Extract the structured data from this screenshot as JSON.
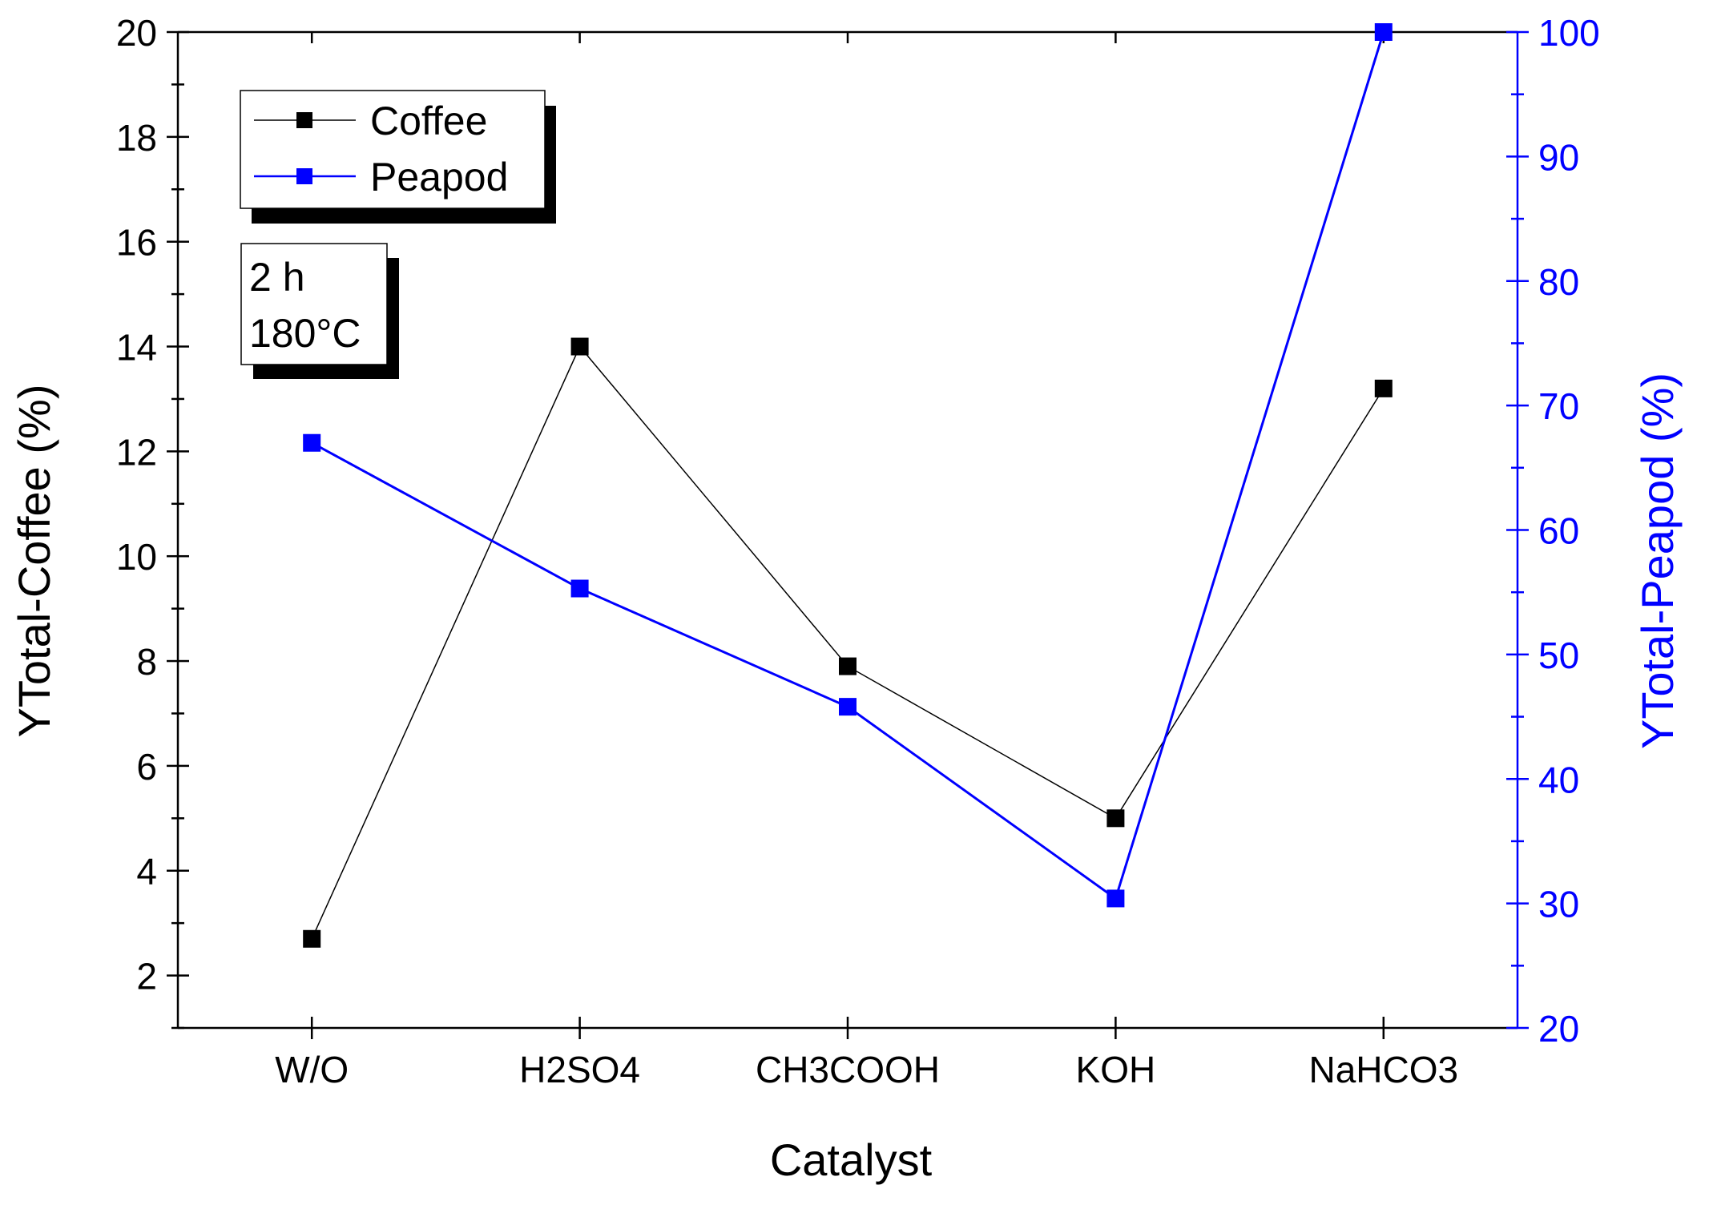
{
  "chart_data": {
    "type": "line",
    "xlabel": "Catalyst",
    "ylabel_left": "YTotal-Coffee (%)",
    "ylabel_right": "YTotal-Peapod (%)",
    "categories": [
      "W/O",
      "H2SO4",
      "CH3COOH",
      "KOH",
      "NaHCO3"
    ],
    "ylim_left": [
      1,
      20
    ],
    "ylim_right": [
      20,
      100
    ],
    "yticks_left": [
      2,
      4,
      6,
      8,
      10,
      12,
      14,
      16,
      18,
      20
    ],
    "yticks_right": [
      20,
      30,
      40,
      50,
      60,
      70,
      80,
      90,
      100
    ],
    "series": [
      {
        "name": "Coffee",
        "axis": "left",
        "color": "#000000",
        "values": [
          2.7,
          14.0,
          7.9,
          5.0,
          13.2
        ]
      },
      {
        "name": "Peapod",
        "axis": "right",
        "color": "#0000ff",
        "values": [
          67.0,
          55.3,
          45.8,
          30.4,
          100.0
        ]
      }
    ],
    "legend_position": "top-left",
    "annotation": {
      "line1": "2 h",
      "line2": "180°C"
    },
    "grid": false
  }
}
